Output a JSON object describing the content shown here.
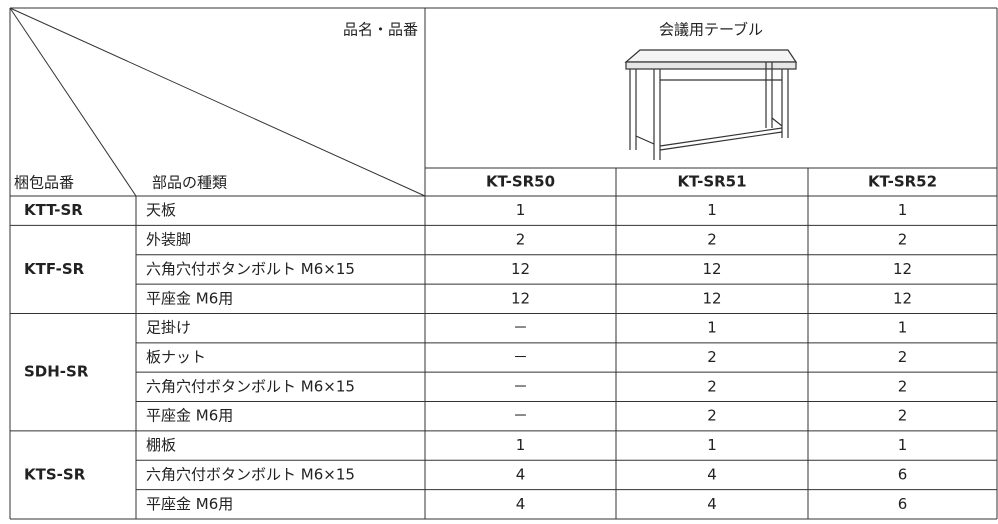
{
  "header": {
    "product_label": "品名・品番",
    "package_label": "梱包品番",
    "part_label": "部品の種類",
    "product_name": "会議用テーブル",
    "models": [
      "KT-SR50",
      "KT-SR51",
      "KT-SR52"
    ]
  },
  "table": {
    "groups": [
      {
        "code": "KTT-SR",
        "rows": [
          {
            "part": "天板",
            "values": [
              "1",
              "1",
              "1"
            ]
          }
        ]
      },
      {
        "code": "KTF-SR",
        "rows": [
          {
            "part": "外装脚",
            "values": [
              "2",
              "2",
              "2"
            ]
          },
          {
            "part": "六角穴付ボタンボルト M6×15",
            "values": [
              "12",
              "12",
              "12"
            ]
          },
          {
            "part": "平座金 M6用",
            "values": [
              "12",
              "12",
              "12"
            ]
          }
        ]
      },
      {
        "code": "SDH-SR",
        "rows": [
          {
            "part": "足掛け",
            "values": [
              "－",
              "1",
              "1"
            ]
          },
          {
            "part": "板ナット",
            "values": [
              "－",
              "2",
              "2"
            ]
          },
          {
            "part": "六角穴付ボタンボルト M6×15",
            "values": [
              "－",
              "2",
              "2"
            ]
          },
          {
            "part": "平座金 M6用",
            "values": [
              "－",
              "2",
              "2"
            ]
          }
        ]
      },
      {
        "code": "KTS-SR",
        "rows": [
          {
            "part": "棚板",
            "values": [
              "1",
              "1",
              "1"
            ]
          },
          {
            "part": "六角穴付ボタンボルト M6×15",
            "values": [
              "4",
              "4",
              "6"
            ]
          },
          {
            "part": "平座金 M6用",
            "values": [
              "4",
              "4",
              "6"
            ]
          }
        ]
      }
    ]
  }
}
